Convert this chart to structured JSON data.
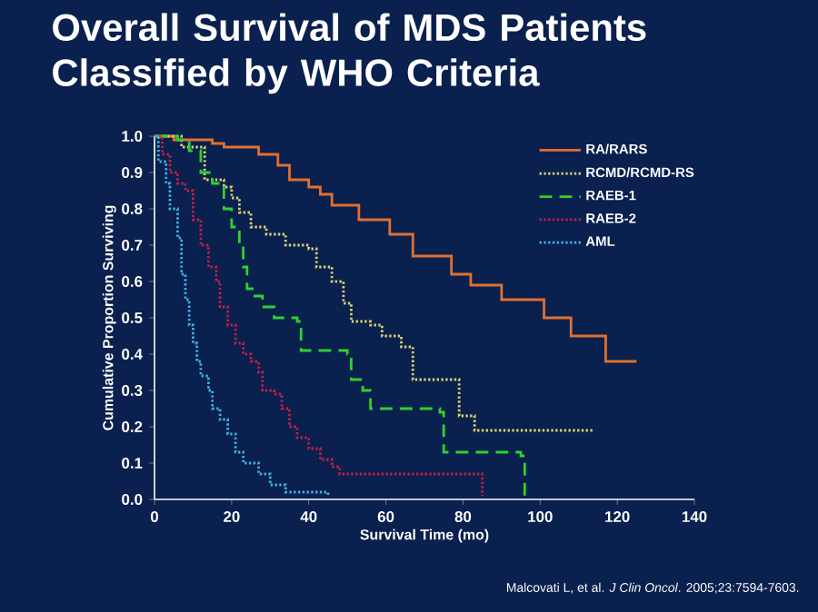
{
  "chart_data": {
    "type": "step",
    "title": "Overall Survival of MDS Patients Classified by WHO Criteria",
    "xlabel": "Survival Time (mo)",
    "ylabel": "Cumulative Proportion Surviving",
    "annotations": [
      "Malcovati L, et al. *J Clin Oncol*. 2005;23:7594-7603."
    ],
    "xlim": [
      0,
      140
    ],
    "ylim": [
      0,
      1.0
    ],
    "xticks": [
      0,
      20,
      40,
      60,
      80,
      100,
      120,
      140
    ],
    "yticks": [
      {
        "value": 0,
        "label": "0.0"
      },
      0.1,
      0.2,
      0.3,
      0.4,
      0.5,
      0.6,
      0.7,
      0.8,
      0.9,
      {
        "value": 1,
        "label": "1.0"
      }
    ],
    "legend": "top right",
    "series": [
      {
        "name": "RA/RARS",
        "color": "#e07030",
        "line_style": "solid",
        "x": [
          0,
          5,
          15,
          18,
          27,
          32,
          35,
          40,
          43,
          46,
          53,
          61,
          67,
          77,
          82,
          90,
          101,
          108,
          117,
          125
        ],
        "values": [
          1.0,
          0.99,
          0.98,
          0.97,
          0.95,
          0.92,
          0.88,
          0.86,
          0.84,
          0.81,
          0.77,
          0.73,
          0.67,
          0.62,
          0.59,
          0.55,
          0.5,
          0.45,
          0.38,
          0.38
        ]
      },
      {
        "name": "RCMD/RCMD-RS",
        "color": "#d8d070",
        "line_style": "dotted",
        "x": [
          0,
          7,
          13,
          18,
          20,
          22,
          25,
          29,
          34,
          40,
          42,
          46,
          49,
          51,
          56,
          59,
          64,
          67,
          79,
          83,
          114
        ],
        "values": [
          1.0,
          0.97,
          0.88,
          0.86,
          0.83,
          0.79,
          0.75,
          0.73,
          0.7,
          0.69,
          0.64,
          0.6,
          0.54,
          0.49,
          0.48,
          0.45,
          0.42,
          0.33,
          0.23,
          0.19,
          0.19
        ]
      },
      {
        "name": "RAEB-1",
        "color": "#30d030",
        "line_style": "dashed",
        "x": [
          0,
          6,
          9,
          12,
          15,
          18,
          20,
          22,
          23,
          24,
          26,
          28,
          31,
          37,
          38,
          50,
          51,
          54,
          56,
          74,
          75,
          95,
          96
        ],
        "values": [
          1.0,
          0.99,
          0.96,
          0.9,
          0.87,
          0.8,
          0.75,
          0.7,
          0.64,
          0.58,
          0.56,
          0.53,
          0.5,
          0.49,
          0.41,
          0.4,
          0.33,
          0.3,
          0.25,
          0.24,
          0.13,
          0.12,
          0.01
        ]
      },
      {
        "name": "RAEB-2",
        "color": "#c0204a",
        "line_style": "dotted",
        "x": [
          0,
          2,
          4,
          6,
          8,
          10,
          12,
          14,
          16,
          17,
          19,
          21,
          23,
          25,
          27,
          28,
          31,
          33,
          35,
          37,
          40,
          43,
          46,
          48,
          84,
          85
        ],
        "values": [
          1.0,
          0.95,
          0.9,
          0.87,
          0.85,
          0.77,
          0.7,
          0.64,
          0.6,
          0.53,
          0.48,
          0.43,
          0.4,
          0.38,
          0.35,
          0.3,
          0.29,
          0.25,
          0.2,
          0.17,
          0.14,
          0.11,
          0.09,
          0.07,
          0.07,
          0.01
        ]
      },
      {
        "name": "AML",
        "color": "#40b0e0",
        "line_style": "dotted",
        "x": [
          0,
          1,
          3,
          4,
          6,
          7,
          8,
          9,
          10,
          11,
          12,
          14,
          15,
          17,
          19,
          21,
          23,
          27,
          30,
          34,
          44,
          45
        ],
        "values": [
          1.0,
          0.93,
          0.87,
          0.8,
          0.72,
          0.62,
          0.55,
          0.48,
          0.43,
          0.38,
          0.34,
          0.3,
          0.25,
          0.22,
          0.18,
          0.13,
          0.1,
          0.07,
          0.04,
          0.02,
          0.02,
          0.01
        ]
      }
    ]
  }
}
